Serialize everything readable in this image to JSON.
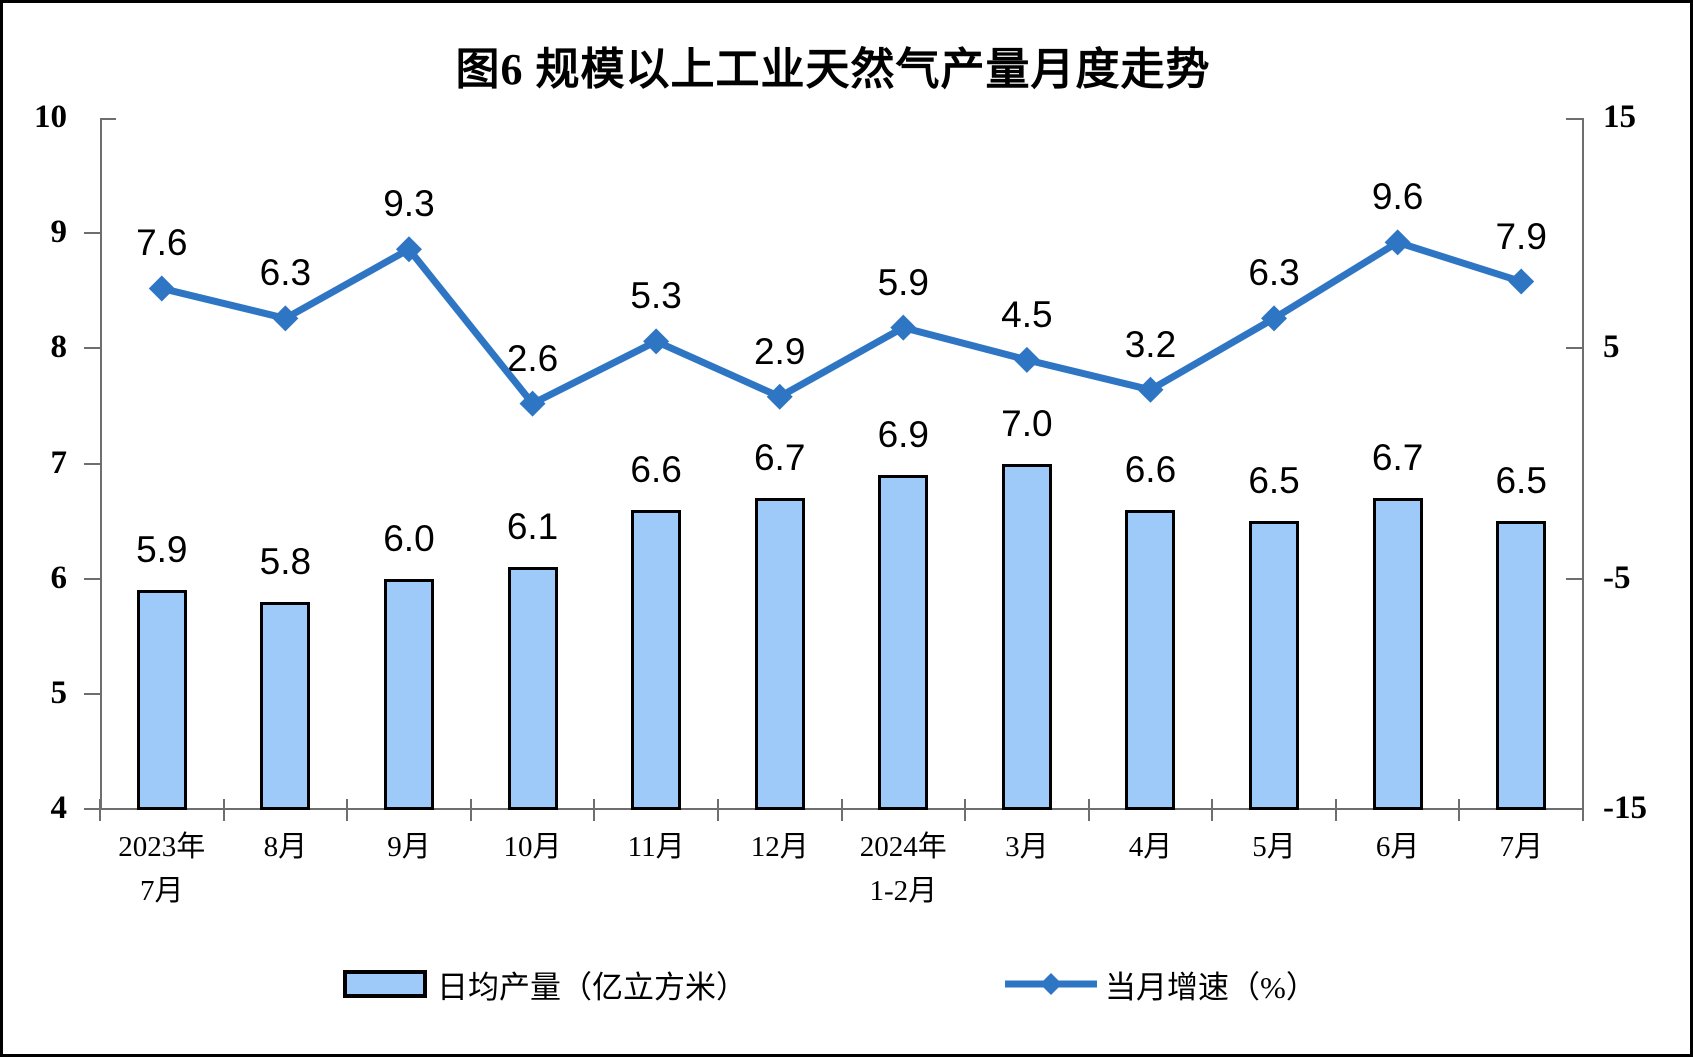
{
  "title": "图6 规模以上工业天然气产量月度走势",
  "legend": {
    "bar_label": "日均产量（亿立方米）",
    "line_label": "当月增速（%）"
  },
  "colors": {
    "bar_fill": "#9DCAF8",
    "bar_border": "#000000",
    "line": "#2E76C4",
    "axis": "#6e6e6e",
    "text": "#000000"
  },
  "chart_data": {
    "type": "combo",
    "title": "图6 规模以上工业天然气产量月度走势",
    "categories": [
      "2023年\n7月",
      "8月",
      "9月",
      "10月",
      "11月",
      "12月",
      "2024年\n1-2月",
      "3月",
      "4月",
      "5月",
      "6月",
      "7月"
    ],
    "series": [
      {
        "name": "日均产量（亿立方米）",
        "type": "bar",
        "axis": "left",
        "values": [
          5.9,
          5.8,
          6.0,
          6.1,
          6.6,
          6.7,
          6.9,
          7.0,
          6.6,
          6.5,
          6.7,
          6.5
        ]
      },
      {
        "name": "当月增速（%）",
        "type": "line",
        "axis": "right",
        "marker": "diamond",
        "values": [
          7.6,
          6.3,
          9.3,
          2.6,
          5.3,
          2.9,
          5.9,
          4.5,
          3.2,
          6.3,
          9.6,
          7.9
        ]
      }
    ],
    "axes": {
      "left": {
        "min": 4,
        "max": 10,
        "tick_labels": [
          10,
          9,
          8,
          7,
          6,
          5,
          4
        ]
      },
      "right": {
        "min": -15,
        "max": 15,
        "tick_labels": [
          15,
          5,
          -5,
          -15
        ]
      }
    },
    "grid": false,
    "legend_position": "bottom",
    "data_labels": true
  }
}
